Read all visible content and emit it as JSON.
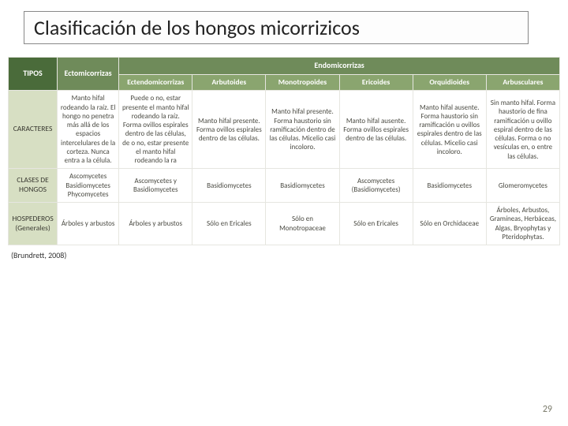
{
  "title": "Clasificación de los hongos micorrizicos",
  "citation": "(Brundrett, 2008)",
  "page_number": "29",
  "colors": {
    "hdr_dark": "#4a6b3a",
    "hdr_mid": "#6f8b5a",
    "hdr_light": "#8aa56f",
    "rowlabel_bg": "#d7dfc3"
  },
  "header": {
    "tipos": "TIPOS",
    "ecto": "Ectomicorrizas",
    "endo_group": "Endomicorrizas",
    "sub": {
      "e1": "Ectendomicorrizas",
      "e2": "Arbutoides",
      "e3": "Monotropoides",
      "e4": "Ericoides",
      "e5": "Orquidioides",
      "e6": "Arbusculares"
    }
  },
  "rows": {
    "caracteres": {
      "label": "CARACTERES",
      "ecto": "Manto hifal rodeando la raíz. El hongo no penetra más allá de los espacios intercelulares de la corteza. Nunca entra a la célula.",
      "e1": "Puede o no, estar presente el manto hifal rodeando la raíz. Forma ovillos espirales dentro de las células, de o no, estar presente el manto hifal rodeando la ra",
      "e2": "Manto hifal presente. Forma ovillos espirales dentro de las células.",
      "e3": "Manto hifal presente. Forma haustorio sin ramificación dentro de las células. Micelio casi incoloro.",
      "e4": "Manto hifal ausente. Forma ovillos espirales dentro de las células.",
      "e5": "Manto hifal ausente. Forma haustorio sin ramificación u ovillos espirales dentro de las células. Micelio casi incoloro.",
      "e6": "Sin manto hifal. Forma haustorio de fina ramificación u ovillo espiral dentro de las células. Forma o no vesículas en, o entre las células."
    },
    "clases": {
      "label": "CLASES DE HONGOS",
      "ecto": "Ascomycetes Basidiomycetes Phycomycetes",
      "e1": "Ascomycetes y Basidiomycetes",
      "e2": "Basidiomycetes",
      "e3": "Basidiomycetes",
      "e4": "Ascomycetes (Basidiomycetes)",
      "e5": "Basidiomycetes",
      "e6": "Glomeromycetes"
    },
    "hospederos": {
      "label": "HOSPEDEROS (Generales)",
      "ecto": "Árboles y arbustos",
      "e1": "Árboles y arbustos",
      "e2": "Sólo en Ericales",
      "e3": "Sólo en Monotropaceae",
      "e4": "Sólo en Ericales",
      "e5": "Sólo en Orchidaceae",
      "e6": "Árboles, Arbustos, Gramíneas, Herbáceas, Algas, Bryophytas y Pteridophytas."
    }
  }
}
